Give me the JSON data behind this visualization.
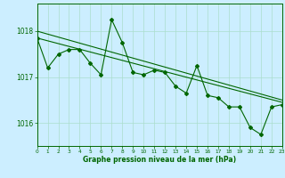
{
  "background_color": "#cceeff",
  "grid_color": "#aaddcc",
  "line_color": "#006600",
  "x_min": 0,
  "x_max": 23,
  "y_min": 1015.5,
  "y_max": 1018.6,
  "yticks": [
    1016,
    1017,
    1018
  ],
  "xticks": [
    0,
    1,
    2,
    3,
    4,
    5,
    6,
    7,
    8,
    9,
    10,
    11,
    12,
    13,
    14,
    15,
    16,
    17,
    18,
    19,
    20,
    21,
    22,
    23
  ],
  "xlabel": "Graphe pression niveau de la mer (hPa)",
  "series1_x": [
    0,
    1,
    2,
    3,
    4,
    5,
    6,
    7,
    8,
    9,
    10,
    11,
    12,
    13,
    14,
    15,
    16,
    17,
    18,
    19,
    20,
    21,
    22,
    23
  ],
  "series1_y": [
    1017.85,
    1017.2,
    1017.5,
    1017.6,
    1017.6,
    1017.3,
    1017.05,
    1018.25,
    1017.75,
    1017.1,
    1017.05,
    1017.15,
    1017.1,
    1016.8,
    1016.65,
    1017.25,
    1016.6,
    1016.55,
    1016.35,
    1016.35,
    1015.9,
    1015.75,
    1016.35,
    1016.4
  ],
  "series2_x": [
    0,
    23
  ],
  "series2_y": [
    1018.0,
    1016.5
  ],
  "series3_x": [
    0,
    23
  ],
  "series3_y": [
    1017.85,
    1016.45
  ]
}
